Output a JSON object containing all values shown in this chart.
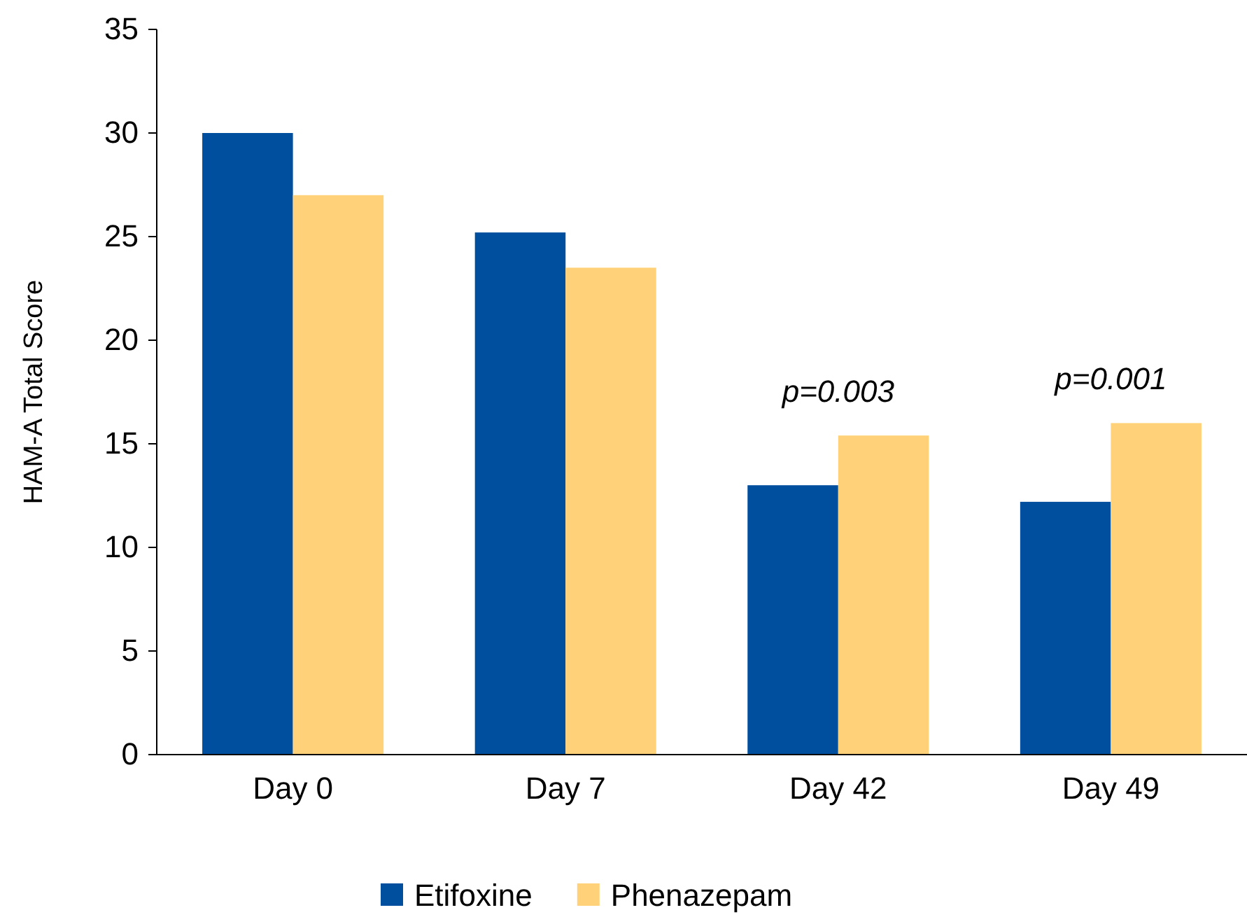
{
  "chart_data": {
    "type": "bar",
    "ylabel": "HAM-A Total Score",
    "categories": [
      "Day 0",
      "Day 7",
      "Day 42",
      "Day 49"
    ],
    "series": [
      {
        "name": "Etifoxine",
        "color": "#004f9f",
        "values": [
          30,
          25.2,
          13,
          12.2
        ]
      },
      {
        "name": "Phenazepam",
        "color": "#ffd27a",
        "values": [
          27,
          23.5,
          15.4,
          16
        ]
      }
    ],
    "ylim": [
      0,
      35
    ],
    "yticks": [
      0,
      5,
      10,
      15,
      20,
      25,
      30,
      35
    ],
    "grid": false,
    "legend": "bottom",
    "annotations": [
      "p=0.003",
      "p=0.001"
    ]
  }
}
